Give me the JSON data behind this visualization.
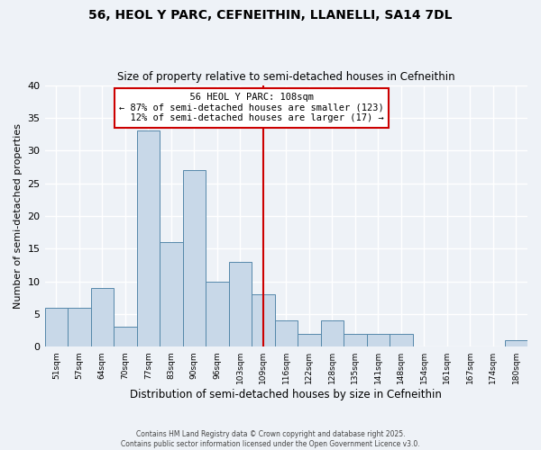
{
  "title_line1": "56, HEOL Y PARC, CEFNEITHIN, LLANELLI, SA14 7DL",
  "title_line2": "Size of property relative to semi-detached houses in Cefneithin",
  "xlabel": "Distribution of semi-detached houses by size in Cefneithin",
  "ylabel": "Number of semi-detached properties",
  "categories": [
    "51sqm",
    "57sqm",
    "64sqm",
    "70sqm",
    "77sqm",
    "83sqm",
    "90sqm",
    "96sqm",
    "103sqm",
    "109sqm",
    "116sqm",
    "122sqm",
    "128sqm",
    "135sqm",
    "141sqm",
    "148sqm",
    "154sqm",
    "161sqm",
    "167sqm",
    "174sqm",
    "180sqm"
  ],
  "values": [
    6,
    6,
    9,
    3,
    33,
    16,
    27,
    10,
    13,
    8,
    4,
    2,
    4,
    2,
    2,
    2,
    0,
    0,
    0,
    0,
    1
  ],
  "bar_color": "#c8d8e8",
  "bar_edge_color": "#5588aa",
  "highlight_index": 9,
  "highlight_color": "#cc0000",
  "highlight_label": "56 HEOL Y PARC: 108sqm",
  "pct_smaller": 87,
  "n_smaller": 123,
  "pct_larger": 12,
  "n_larger": 17,
  "ylim": [
    0,
    40
  ],
  "yticks": [
    0,
    5,
    10,
    15,
    20,
    25,
    30,
    35,
    40
  ],
  "bg_color": "#eef2f7",
  "grid_color": "#ffffff",
  "footnote": "Contains HM Land Registry data © Crown copyright and database right 2025.\nContains public sector information licensed under the Open Government Licence v3.0."
}
